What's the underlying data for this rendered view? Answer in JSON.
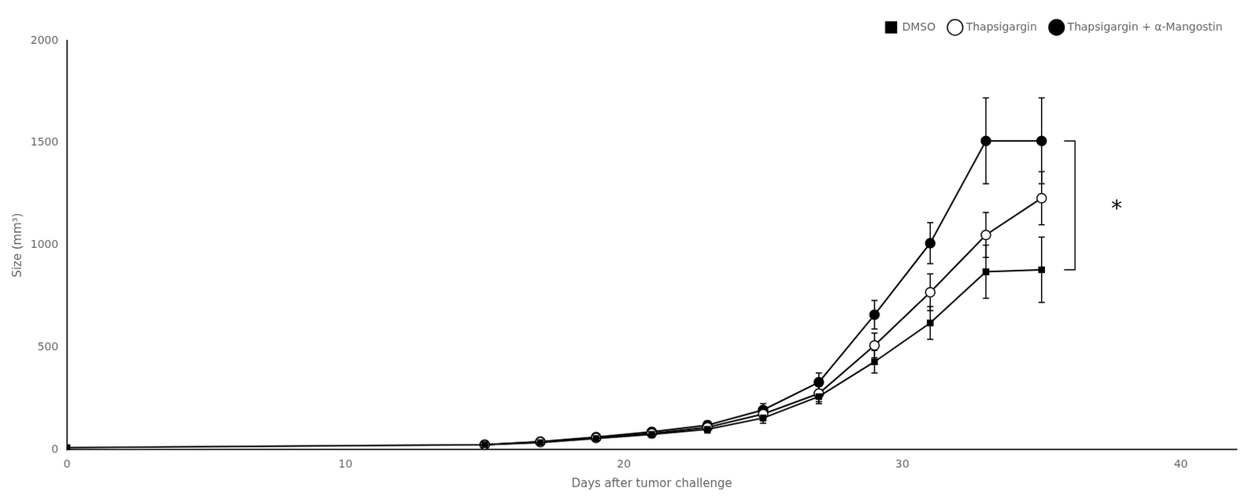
{
  "chart_data": {
    "type": "line",
    "xlabel": "Days after tumor challenge",
    "ylabel": "Size (mm³)",
    "series": [
      {
        "name": "DMSO",
        "color": "#000000",
        "marker": "square",
        "x": [
          0,
          15,
          17,
          19,
          21,
          23,
          25,
          27,
          29,
          31,
          33,
          35
        ],
        "values": [
          10,
          25,
          35,
          55,
          75,
          100,
          155,
          260,
          430,
          620,
          870,
          880
        ],
        "yerr": [
          5,
          8,
          10,
          12,
          15,
          18,
          25,
          35,
          55,
          80,
          130,
          160
        ]
      },
      {
        "name": "Thapsigargin",
        "color": "#000000",
        "marker": "open_circle",
        "x": [
          15,
          17,
          19,
          21,
          23,
          25,
          27,
          29,
          31,
          33,
          35
        ],
        "values": [
          25,
          38,
          58,
          80,
          110,
          175,
          275,
          510,
          770,
          1050,
          1230
        ],
        "yerr": [
          8,
          10,
          12,
          15,
          18,
          28,
          40,
          60,
          90,
          110,
          130
        ]
      },
      {
        "name": "Thapsigargin + α-Mangostin",
        "color": "#000000",
        "marker": "circle",
        "x": [
          15,
          17,
          19,
          21,
          23,
          25,
          27,
          29,
          31,
          33,
          35
        ],
        "values": [
          25,
          40,
          62,
          88,
          120,
          195,
          330,
          660,
          1010,
          1510,
          1510
        ],
        "yerr": [
          8,
          10,
          12,
          16,
          20,
          30,
          45,
          70,
          100,
          210,
          210
        ]
      }
    ],
    "bracket": {
      "x": 36.2,
      "y_bottom": 880,
      "y_top": 1510,
      "color": "#000000"
    },
    "annotations": [
      {
        "text": "*",
        "x": 37.5,
        "y": 1195,
        "color": "#000000"
      }
    ],
    "xlim": [
      0,
      42
    ],
    "ylim": [
      0,
      2000
    ],
    "xticks": [
      0,
      10,
      20,
      30,
      40
    ],
    "yticks": [
      0,
      500,
      1000,
      1500,
      2000
    ],
    "grid": false,
    "legend": "upper right"
  }
}
